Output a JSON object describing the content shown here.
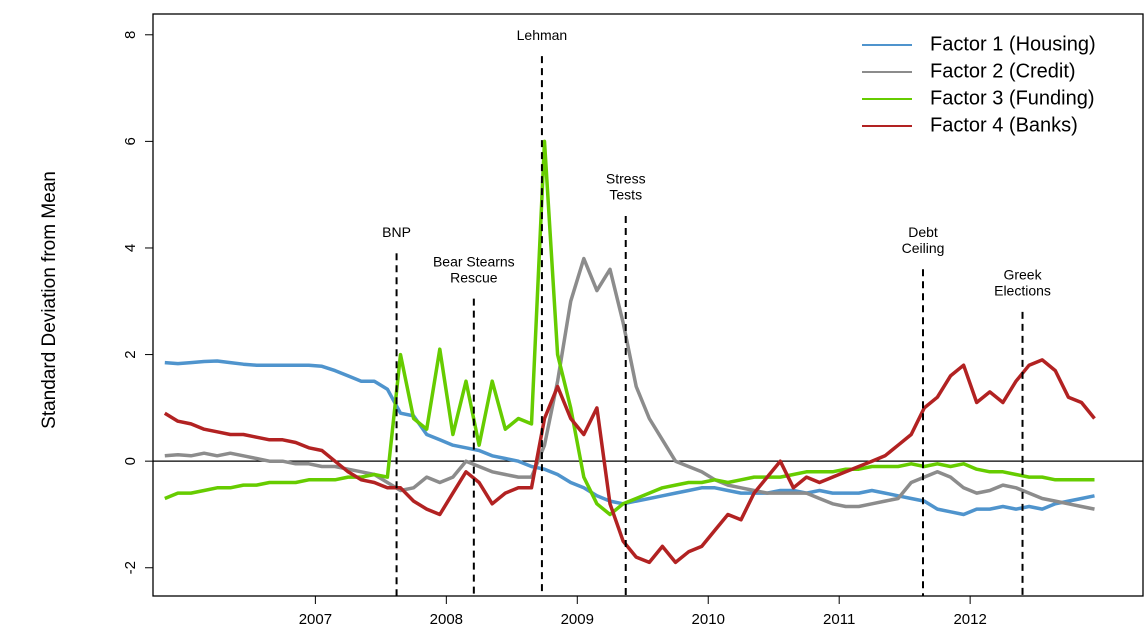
{
  "chart_data": {
    "type": "line",
    "y_label": "Standard Deviation from Mean",
    "x": [
      2005.85,
      2005.95,
      2006.05,
      2006.15,
      2006.25,
      2006.35,
      2006.45,
      2006.55,
      2006.65,
      2006.75,
      2006.85,
      2006.95,
      2007.05,
      2007.15,
      2007.25,
      2007.35,
      2007.45,
      2007.55,
      2007.65,
      2007.75,
      2007.85,
      2007.95,
      2008.05,
      2008.15,
      2008.25,
      2008.35,
      2008.45,
      2008.55,
      2008.65,
      2008.75,
      2008.85,
      2008.95,
      2009.05,
      2009.15,
      2009.25,
      2009.35,
      2009.45,
      2009.55,
      2009.65,
      2009.75,
      2009.85,
      2009.95,
      2010.05,
      2010.15,
      2010.25,
      2010.35,
      2010.45,
      2010.55,
      2010.65,
      2010.75,
      2010.85,
      2010.95,
      2011.05,
      2011.15,
      2011.25,
      2011.35,
      2011.45,
      2011.55,
      2011.65,
      2011.75,
      2011.85,
      2011.95,
      2012.05,
      2012.15,
      2012.25,
      2012.35,
      2012.45,
      2012.55,
      2012.65,
      2012.75,
      2012.85,
      2012.95
    ],
    "series": [
      {
        "name": "Factor 1 (Housing)",
        "color": "#4f94cd",
        "values": [
          1.85,
          1.83,
          1.85,
          1.87,
          1.88,
          1.85,
          1.82,
          1.8,
          1.8,
          1.8,
          1.8,
          1.8,
          1.78,
          1.7,
          1.6,
          1.5,
          1.5,
          1.35,
          0.9,
          0.85,
          0.5,
          0.4,
          0.3,
          0.25,
          0.2,
          0.1,
          0.05,
          0.0,
          -0.1,
          -0.15,
          -0.25,
          -0.4,
          -0.5,
          -0.65,
          -0.75,
          -0.8,
          -0.75,
          -0.7,
          -0.65,
          -0.6,
          -0.55,
          -0.5,
          -0.5,
          -0.55,
          -0.6,
          -0.6,
          -0.6,
          -0.55,
          -0.55,
          -0.6,
          -0.55,
          -0.6,
          -0.6,
          -0.6,
          -0.55,
          -0.6,
          -0.65,
          -0.7,
          -0.75,
          -0.9,
          -0.95,
          -1.0,
          -0.9,
          -0.9,
          -0.85,
          -0.9,
          -0.85,
          -0.9,
          -0.8,
          -0.75,
          -0.7,
          -0.65
        ]
      },
      {
        "name": "Factor 2 (Credit)",
        "color": "#8c8c8c",
        "values": [
          0.1,
          0.12,
          0.1,
          0.15,
          0.1,
          0.15,
          0.1,
          0.05,
          0.0,
          0.0,
          -0.05,
          -0.05,
          -0.1,
          -0.1,
          -0.15,
          -0.2,
          -0.25,
          -0.4,
          -0.55,
          -0.5,
          -0.3,
          -0.4,
          -0.3,
          0.0,
          -0.1,
          -0.2,
          -0.25,
          -0.3,
          -0.3,
          0.3,
          1.5,
          3.0,
          3.8,
          3.2,
          3.6,
          2.6,
          1.4,
          0.8,
          0.4,
          0.0,
          -0.1,
          -0.2,
          -0.35,
          -0.45,
          -0.5,
          -0.55,
          -0.6,
          -0.6,
          -0.6,
          -0.6,
          -0.7,
          -0.8,
          -0.85,
          -0.85,
          -0.8,
          -0.75,
          -0.7,
          -0.4,
          -0.3,
          -0.2,
          -0.3,
          -0.5,
          -0.6,
          -0.55,
          -0.45,
          -0.5,
          -0.6,
          -0.7,
          -0.75,
          -0.8,
          -0.85,
          -0.9
        ]
      },
      {
        "name": "Factor 3 (Funding)",
        "color": "#66cc00",
        "values": [
          -0.7,
          -0.6,
          -0.6,
          -0.55,
          -0.5,
          -0.5,
          -0.45,
          -0.45,
          -0.4,
          -0.4,
          -0.4,
          -0.35,
          -0.35,
          -0.35,
          -0.3,
          -0.3,
          -0.25,
          -0.3,
          2.0,
          0.8,
          0.6,
          2.1,
          0.5,
          1.5,
          0.3,
          1.5,
          0.6,
          0.8,
          0.7,
          6.0,
          2.0,
          1.0,
          -0.3,
          -0.8,
          -1.0,
          -0.8,
          -0.7,
          -0.6,
          -0.5,
          -0.45,
          -0.4,
          -0.4,
          -0.35,
          -0.4,
          -0.35,
          -0.3,
          -0.3,
          -0.3,
          -0.25,
          -0.2,
          -0.2,
          -0.2,
          -0.15,
          -0.15,
          -0.1,
          -0.1,
          -0.1,
          -0.05,
          -0.1,
          -0.05,
          -0.1,
          -0.05,
          -0.15,
          -0.2,
          -0.2,
          -0.25,
          -0.3,
          -0.3,
          -0.35,
          -0.35,
          -0.35,
          -0.35
        ]
      },
      {
        "name": "Factor 4 (Banks)",
        "color": "#b22222",
        "values": [
          0.9,
          0.75,
          0.7,
          0.6,
          0.55,
          0.5,
          0.5,
          0.45,
          0.4,
          0.4,
          0.35,
          0.25,
          0.2,
          0.0,
          -0.2,
          -0.35,
          -0.4,
          -0.5,
          -0.5,
          -0.75,
          -0.9,
          -1.0,
          -0.6,
          -0.2,
          -0.4,
          -0.8,
          -0.6,
          -0.5,
          -0.5,
          0.8,
          1.4,
          0.8,
          0.5,
          1.0,
          -0.8,
          -1.5,
          -1.8,
          -1.9,
          -1.6,
          -1.9,
          -1.7,
          -1.6,
          -1.3,
          -1.0,
          -1.1,
          -0.6,
          -0.3,
          0.0,
          -0.5,
          -0.3,
          -0.4,
          -0.3,
          -0.2,
          -0.1,
          0.0,
          0.1,
          0.3,
          0.5,
          1.0,
          1.2,
          1.6,
          1.8,
          1.1,
          1.3,
          1.1,
          1.5,
          1.8,
          1.9,
          1.7,
          1.2,
          1.1,
          0.8
        ]
      }
    ],
    "annotations": [
      {
        "label": [
          "BNP"
        ],
        "x": 2007.62,
        "y_top": 3.9
      },
      {
        "label": [
          "Bear Stearns",
          "Rescue"
        ],
        "x": 2008.21,
        "y_top": 3.05
      },
      {
        "label": [
          "Lehman"
        ],
        "x": 2008.73,
        "y_top": 7.6
      },
      {
        "label": [
          "Stress",
          "Tests"
        ],
        "x": 2009.37,
        "y_top": 4.6
      },
      {
        "label": [
          "Debt",
          "Ceiling"
        ],
        "x": 2011.64,
        "y_top": 3.6
      },
      {
        "label": [
          "Greek",
          "Elections"
        ],
        "x": 2012.4,
        "y_top": 2.8
      }
    ],
    "reference_line": 0,
    "xlim": [
      2005.76,
      2013.32
    ],
    "ylim": [
      -2.53,
      8.39
    ],
    "xticks": [
      2007,
      2008,
      2009,
      2010,
      2011,
      2012
    ],
    "yticks": [
      -2,
      0,
      2,
      4,
      6,
      8
    ],
    "legend": "top-right"
  }
}
